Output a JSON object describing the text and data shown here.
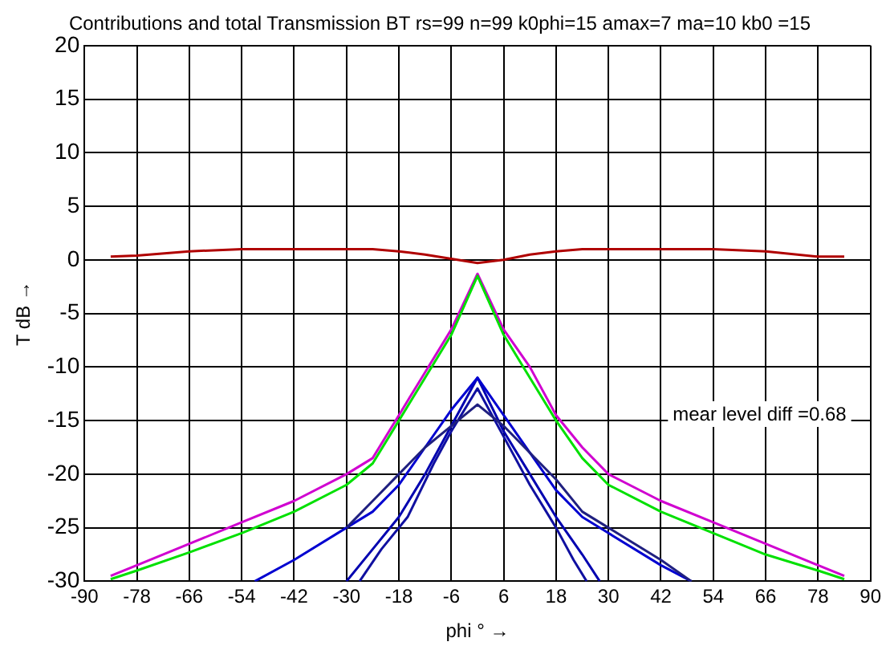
{
  "chart_data": {
    "type": "line",
    "title": "Contributions and total Transmission BT rs=99 n=99 k0phi=15 amax=7 ma=10 kb0 =15",
    "xlabel": "phi ° →",
    "ylabel": "T dB →",
    "annotations": [
      "mear level diff =0.68"
    ],
    "xlim": [
      -90,
      90
    ],
    "xticks": [
      -90,
      -78,
      -66,
      -54,
      -42,
      -30,
      -18,
      -6,
      6,
      18,
      30,
      42,
      54,
      66,
      78,
      90
    ],
    "ylim": [
      -30,
      20
    ],
    "yticks": [
      -30,
      -25,
      -20,
      -15,
      -10,
      -5,
      0,
      5,
      10,
      15,
      20
    ],
    "grid": true,
    "legend": false,
    "marker": "none",
    "line_style": "solid",
    "series": [
      {
        "color": "#b00000",
        "x": [
          -84,
          -78,
          -66,
          -54,
          -42,
          -30,
          -24,
          -18,
          -12,
          -6,
          0,
          6,
          12,
          18,
          24,
          42,
          54,
          66,
          78,
          84
        ],
        "values": [
          0.3,
          0.4,
          0.8,
          1,
          1,
          1,
          1,
          0.8,
          0.5,
          0.1,
          -0.3,
          0,
          0.5,
          0.8,
          1,
          1,
          1,
          0.8,
          0.3,
          0.3
        ]
      },
      {
        "color": "#00e000",
        "x": [
          -84,
          -78,
          -66,
          -54,
          -42,
          -30,
          -24,
          -18,
          -12,
          -6,
          0,
          6,
          12,
          18,
          24,
          30,
          42,
          54,
          66,
          78,
          84
        ],
        "values": [
          -29.8,
          -29,
          -27.3,
          -25.5,
          -23.5,
          -21,
          -19,
          -15,
          -11,
          -7,
          -1.5,
          -7,
          -11,
          -15,
          -18.5,
          -21,
          -23.5,
          -25.5,
          -27.5,
          -29,
          -29.8
        ]
      },
      {
        "color": "#d000d0",
        "x": [
          -84,
          -78,
          -66,
          -54,
          -42,
          -30,
          -24,
          -18,
          -12,
          -6,
          0,
          6,
          12,
          18,
          24,
          30,
          42,
          54,
          66,
          78,
          84
        ],
        "values": [
          -29.5,
          -28.5,
          -26.5,
          -24.5,
          -22.5,
          -20,
          -18.5,
          -14.5,
          -10.5,
          -6.5,
          -1.3,
          -6.5,
          -10,
          -14.5,
          -17.5,
          -20,
          -22.5,
          -24.5,
          -26.5,
          -28.5,
          -29.5
        ]
      },
      {
        "color": "#202080",
        "x": [
          -30,
          -24,
          -18,
          -12,
          -6,
          0,
          6,
          12,
          18,
          24,
          30,
          42,
          49
        ],
        "values": [
          -25,
          -22.5,
          -20,
          -17.5,
          -15.5,
          -13.5,
          -15.5,
          -18,
          -20.5,
          -23.5,
          -25,
          -28,
          -30
        ]
      },
      {
        "color": "#0000d0",
        "x": [
          -51,
          -42,
          -30,
          -24,
          -18,
          -12,
          -6,
          0,
          6,
          12,
          18,
          24,
          30,
          42,
          49
        ],
        "values": [
          -30,
          -28,
          -25,
          -23.5,
          -21,
          -17.5,
          -14,
          -11,
          -14.5,
          -18,
          -21.5,
          -24,
          -25.5,
          -28.5,
          -30
        ]
      },
      {
        "color": "#0000b0",
        "x": [
          -30,
          -24,
          -18,
          -12,
          -6,
          0,
          6,
          12,
          18,
          24,
          28
        ],
        "values": [
          -30,
          -27,
          -24,
          -20,
          -15.5,
          -11,
          -16,
          -20,
          -24,
          -27.5,
          -30
        ]
      },
      {
        "color": "#1010a0",
        "x": [
          -27,
          -22,
          -16,
          -10,
          -6,
          0,
          6,
          12,
          18,
          22,
          25
        ],
        "values": [
          -30,
          -27,
          -24,
          -19,
          -16,
          -12,
          -16.5,
          -21,
          -25,
          -28,
          -30
        ]
      }
    ]
  }
}
